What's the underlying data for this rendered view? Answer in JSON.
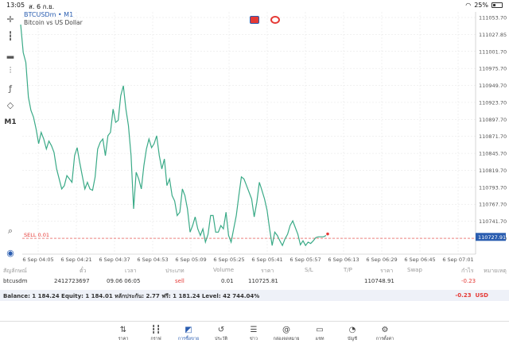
{
  "status_bar": {
    "time": "13:05",
    "date": "ส. 6 ก.ย.",
    "battery": "25%"
  },
  "symbol": {
    "title": "BTCUSDm • M1",
    "subtitle": "Bitcoin vs US Dollar"
  },
  "toolbar": {
    "timeframe": "M1"
  },
  "sell_line_label": "SELL 0.01",
  "colors": {
    "line": "#3aaa87",
    "grid": "#e3e3e3",
    "accent": "#2a5db0",
    "sell": "#e53935",
    "price_tag": "#2a5db0"
  },
  "chart_data": {
    "type": "line",
    "price_axis_labels": [
      "111053.70",
      "111027.85",
      "111001.70",
      "110975.70",
      "110949.70",
      "110923.70",
      "110897.70",
      "110871.70",
      "110845.70",
      "110819.70",
      "110793.70",
      "110767.70",
      "110741.70",
      "110715.70"
    ],
    "time_axis_labels": [
      "6 Sep 04:05",
      "6 Sep 04:21",
      "6 Sep 04:37",
      "6 Sep 04:53",
      "6 Sep 05:09",
      "6 Sep 05:25",
      "6 Sep 05:41",
      "6 Sep 05:57",
      "6 Sep 06:13",
      "6 Sep 06:29",
      "6 Sep 06:45",
      "6 Sep 07:01"
    ],
    "current_price_label": "110727.91",
    "sell_price": 110725.81,
    "ylim": [
      110702,
      111066
    ],
    "x_minutes": [
      0,
      1,
      2,
      3,
      4,
      5,
      6,
      7,
      8,
      9,
      10,
      11,
      12,
      13,
      14,
      15,
      16,
      17,
      18,
      19,
      20,
      21,
      22,
      23,
      24,
      25,
      26,
      27,
      28,
      29,
      30,
      31,
      32,
      33,
      34,
      35,
      36,
      37,
      38,
      39,
      40,
      41,
      42,
      43,
      44,
      45,
      46,
      47,
      48,
      49,
      50,
      51,
      52,
      53,
      54,
      55,
      56,
      57,
      58,
      59,
      60,
      61,
      62,
      63,
      64,
      65,
      66,
      67,
      68,
      69,
      70,
      71,
      72,
      73,
      74,
      75,
      76,
      77,
      78,
      79,
      80,
      81,
      82,
      83,
      84,
      85,
      86,
      87,
      88,
      89,
      90,
      91,
      92,
      93,
      94,
      95,
      96,
      97,
      98,
      99,
      100,
      101,
      102,
      103,
      104,
      105,
      106,
      107,
      108,
      109,
      110,
      111,
      112,
      113,
      114,
      115,
      116,
      117,
      118,
      119
    ],
    "values": [
      111047,
      111005,
      110990,
      110938,
      110918,
      110908,
      110890,
      110868,
      110885,
      110875,
      110860,
      110872,
      110865,
      110855,
      110830,
      110815,
      110800,
      110805,
      110820,
      110815,
      110810,
      110850,
      110862,
      110840,
      110820,
      110800,
      110810,
      110800,
      110798,
      110818,
      110860,
      110870,
      110875,
      110850,
      110880,
      110885,
      110920,
      110900,
      110903,
      110940,
      110955,
      110920,
      110895,
      110850,
      110770,
      110825,
      110815,
      110800,
      110835,
      110860,
      110875,
      110862,
      110868,
      110880,
      110850,
      110830,
      110845,
      110805,
      110815,
      110790,
      110782,
      110760,
      110765,
      110800,
      110790,
      110770,
      110735,
      110745,
      110758,
      110740,
      110730,
      110740,
      110720,
      110732,
      110760,
      110760,
      110735,
      110735,
      110745,
      110740,
      110765,
      110730,
      110720,
      110740,
      110760,
      110790,
      110818,
      110815,
      110805,
      110795,
      110785,
      110758,
      110780,
      110810,
      110798,
      110785,
      110768,
      110740,
      110715,
      110735,
      110730,
      110722,
      110715,
      110725,
      110732,
      110745,
      110752,
      110742,
      110732,
      110716,
      110722,
      110715,
      110720,
      110718,
      110722,
      110727,
      110728,
      110728,
      110728,
      110730
    ]
  },
  "trade_table": {
    "headers": [
      "สัญลักษณ์",
      "ตั๋ว",
      "เวลา",
      "ประเภท",
      "Volume",
      "ราคา",
      "S/L",
      "T/P",
      "ราคา",
      "Swap",
      "กำไร",
      "หมายเหตุ"
    ],
    "row": {
      "symbol": "btcusdm",
      "ticket": "2412723697",
      "time": "09.06 06:05",
      "type": "sell",
      "volume": "0.01",
      "open_price": "110725.81",
      "sl": "",
      "tp": "",
      "current_price": "110748.91",
      "swap": "",
      "profit": "-0.23",
      "comment": ""
    }
  },
  "balance_bar": {
    "text": "Balance: 1 184.24 Equity: 1 184.01 หลักประกัน: 2.77 ฟรี: 1 181.24 Level: 42 744.04%",
    "profit": "-0.23",
    "currency": "USD"
  },
  "bottom_nav": [
    {
      "label": "ราคา",
      "icon": "arrows-updown-icon"
    },
    {
      "label": "กราฟ",
      "icon": "candles-icon"
    },
    {
      "label": "การซื้อขาย",
      "icon": "trade-chart-icon",
      "active": true
    },
    {
      "label": "ประวัติ",
      "icon": "history-icon"
    },
    {
      "label": "ข่าว",
      "icon": "news-icon"
    },
    {
      "label": "กล่องจดหมาย",
      "icon": "mail-at-icon"
    },
    {
      "label": "แชท",
      "icon": "chat-icon"
    },
    {
      "label": "บัญชี",
      "icon": "account-icon"
    },
    {
      "label": "การตั้งค่า",
      "icon": "gear-icon"
    }
  ]
}
